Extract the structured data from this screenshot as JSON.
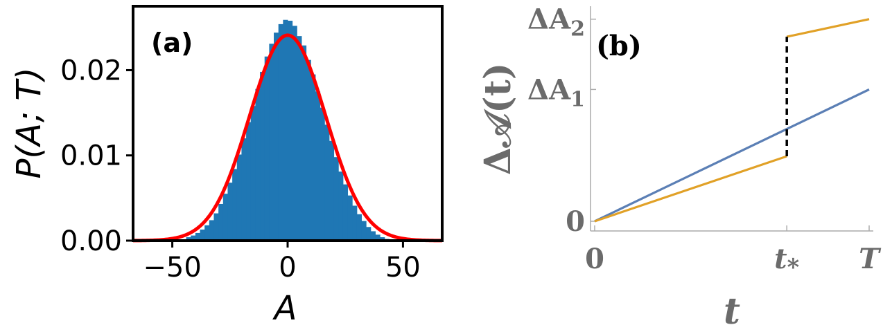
{
  "chart_data": [
    {
      "type": "bar",
      "panel_label": "(a)",
      "xlabel": "A",
      "ylabel": "P(A; T)",
      "xlim": [
        -67,
        67
      ],
      "ylim": [
        0,
        0.0275
      ],
      "x_ticks": [
        -50,
        0,
        50
      ],
      "x_tick_labels": [
        "−50",
        "0",
        "50"
      ],
      "y_ticks": [
        0,
        0.01,
        0.02
      ],
      "y_tick_labels": [
        "0.00",
        "0.01",
        "0.02"
      ],
      "histogram": {
        "color": "#1f77b4",
        "bin_width": 2,
        "bin_centers": [
          -43,
          -41,
          -39,
          -37,
          -35,
          -33,
          -31,
          -29,
          -27,
          -25,
          -23,
          -21,
          -19,
          -17,
          -15,
          -13,
          -11,
          -9,
          -7,
          -5,
          -3,
          -1,
          1,
          3,
          5,
          7,
          9,
          11,
          13,
          15,
          17,
          19,
          21,
          23,
          25,
          27,
          29,
          31,
          33,
          35,
          37,
          39,
          41,
          43
        ],
        "heights": [
          0.0004,
          0.0006,
          0.0009,
          0.0013,
          0.0018,
          0.0024,
          0.0032,
          0.0043,
          0.0055,
          0.0068,
          0.0084,
          0.0101,
          0.012,
          0.0139,
          0.0158,
          0.0178,
          0.0198,
          0.0216,
          0.0231,
          0.0244,
          0.0254,
          0.0259,
          0.0258,
          0.0252,
          0.024,
          0.0229,
          0.0212,
          0.0195,
          0.0175,
          0.0156,
          0.0136,
          0.0117,
          0.0098,
          0.0081,
          0.0066,
          0.0053,
          0.0041,
          0.0031,
          0.0023,
          0.0016,
          0.0011,
          0.0007,
          0.0004,
          0.0002
        ]
      },
      "fit_curve": {
        "color": "#ff0000",
        "type": "gaussian",
        "mean": 0,
        "sigma": 16.5,
        "peak": 0.0241
      }
    },
    {
      "type": "line",
      "panel_label": "(b)",
      "xlabel": "t",
      "ylabel": "Δ𝒜(t)",
      "xlim": [
        0,
        1
      ],
      "ylim": [
        0,
        1.2
      ],
      "x_ticks": [
        0,
        0.7,
        1
      ],
      "x_tick_labels": [
        "0",
        "t*",
        "T"
      ],
      "y_ticks": [
        0,
        0.75,
        1.15
      ],
      "y_tick_labels": [
        "0",
        "ΔA1",
        "ΔA2"
      ],
      "series": [
        {
          "color": "#5b7fb5",
          "x": [
            0,
            1
          ],
          "y": [
            0,
            0.75
          ]
        },
        {
          "color": "#e1a127",
          "x": [
            0,
            0.7,
            0.7,
            1
          ],
          "y": [
            0,
            0.37,
            1.05,
            1.15
          ]
        }
      ],
      "jump": {
        "x": 0.7,
        "y_from": 0.37,
        "y_to": 1.05,
        "color": "#000000",
        "style": "dashed"
      }
    }
  ]
}
